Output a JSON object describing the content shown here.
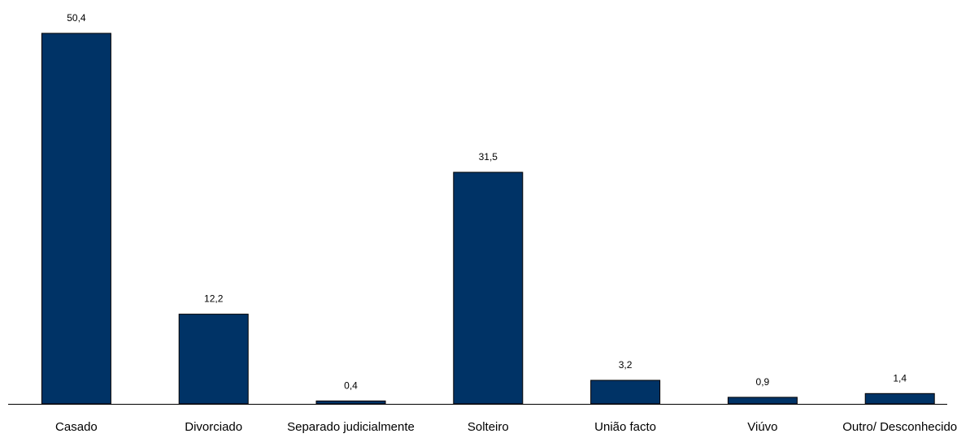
{
  "chart_data": {
    "type": "bar",
    "categories": [
      "Casado",
      "Divorciado",
      "Separado judicialmente",
      "Solteiro",
      "União facto",
      "Viúvo",
      "Outro/ Desconhecido"
    ],
    "values": [
      50.4,
      12.2,
      0.4,
      31.5,
      3.2,
      0.9,
      1.4
    ],
    "value_labels": [
      "50,4",
      "12,2",
      "0,4",
      "31,5",
      "3,2",
      "0,9",
      "1,4"
    ],
    "title": "",
    "xlabel": "",
    "ylabel": "",
    "ylim": [
      0,
      50.4
    ],
    "grid": false,
    "legend": "none",
    "bar_color": "#003366",
    "axis_color": "#000000"
  }
}
